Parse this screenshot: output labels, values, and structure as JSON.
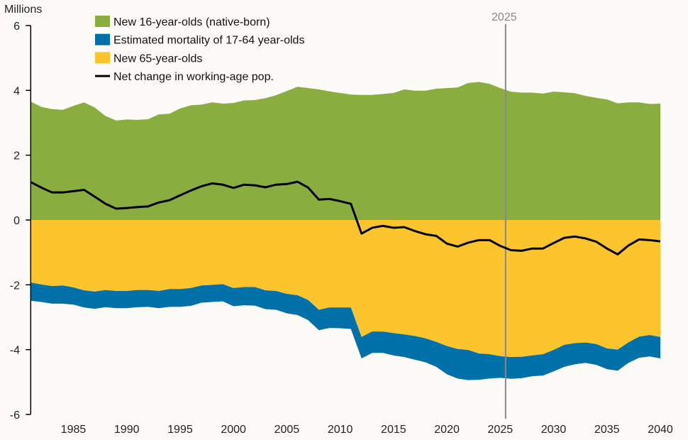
{
  "chart_data": {
    "type": "area",
    "ylabel": "Millions",
    "ylim": [
      -6,
      6
    ],
    "yticks": [
      "6",
      "4",
      "2",
      "0",
      "-2",
      "-4",
      "-6"
    ],
    "xlim": [
      1981,
      2040
    ],
    "xticks": [
      "1985",
      "1990",
      "1995",
      "2000",
      "2005",
      "2010",
      "2015",
      "2020",
      "2025",
      "2030",
      "2035",
      "2040"
    ],
    "grid": false,
    "legend_placement": "top-left",
    "annotation": {
      "label": "2025",
      "x": 2025.5,
      "color": "#888888"
    },
    "x": [
      1981,
      1982,
      1983,
      1984,
      1985,
      1986,
      1987,
      1988,
      1989,
      1990,
      1991,
      1992,
      1993,
      1994,
      1995,
      1996,
      1997,
      1998,
      1999,
      2000,
      2001,
      2002,
      2003,
      2004,
      2005,
      2006,
      2007,
      2008,
      2009,
      2010,
      2011,
      2012,
      2013,
      2014,
      2015,
      2016,
      2017,
      2018,
      2019,
      2020,
      2021,
      2022,
      2023,
      2024,
      2025,
      2026,
      2027,
      2028,
      2029,
      2030,
      2031,
      2032,
      2033,
      2034,
      2035,
      2036,
      2037,
      2038,
      2039,
      2040
    ],
    "series": [
      {
        "name": "New 16-year-olds (native-born)",
        "kind": "area",
        "color": "#8aad3f",
        "values": [
          3.65,
          3.49,
          3.42,
          3.4,
          3.52,
          3.63,
          3.47,
          3.21,
          3.07,
          3.1,
          3.09,
          3.11,
          3.26,
          3.28,
          3.44,
          3.54,
          3.56,
          3.63,
          3.59,
          3.61,
          3.69,
          3.7,
          3.76,
          3.85,
          3.98,
          4.11,
          4.07,
          4.03,
          3.97,
          3.92,
          3.87,
          3.86,
          3.86,
          3.89,
          3.92,
          4.03,
          3.99,
          3.99,
          4.05,
          4.07,
          4.09,
          4.23,
          4.26,
          4.2,
          4.07,
          3.96,
          3.93,
          3.93,
          3.9,
          3.96,
          3.94,
          3.91,
          3.83,
          3.77,
          3.72,
          3.6,
          3.63,
          3.63,
          3.58,
          3.59
        ]
      },
      {
        "name": "Estimated mortality of 17-64 year-olds",
        "kind": "area",
        "color": "#0070a8",
        "values": [
          -0.56,
          -0.54,
          -0.54,
          -0.56,
          -0.53,
          -0.53,
          -0.53,
          -0.53,
          -0.53,
          -0.53,
          -0.53,
          -0.52,
          -0.53,
          -0.55,
          -0.55,
          -0.55,
          -0.53,
          -0.53,
          -0.53,
          -0.56,
          -0.56,
          -0.57,
          -0.58,
          -0.58,
          -0.6,
          -0.61,
          -0.62,
          -0.63,
          -0.63,
          -0.64,
          -0.66,
          -0.66,
          -0.66,
          -0.66,
          -0.69,
          -0.7,
          -0.73,
          -0.74,
          -0.77,
          -0.87,
          -0.91,
          -0.93,
          -0.81,
          -0.75,
          -0.67,
          -0.67,
          -0.66,
          -0.64,
          -0.66,
          -0.66,
          -0.68,
          -0.65,
          -0.63,
          -0.64,
          -0.64,
          -0.65,
          -0.63,
          -0.65,
          -0.66,
          -0.66
        ]
      },
      {
        "name": "New 65-year-olds",
        "kind": "area",
        "color": "#fcc52e",
        "values": [
          -1.93,
          -1.99,
          -2.04,
          -2.02,
          -2.08,
          -2.17,
          -2.21,
          -2.16,
          -2.19,
          -2.19,
          -2.16,
          -2.16,
          -2.19,
          -2.13,
          -2.13,
          -2.1,
          -2.02,
          -2.0,
          -1.98,
          -2.1,
          -2.07,
          -2.07,
          -2.17,
          -2.19,
          -2.28,
          -2.32,
          -2.47,
          -2.77,
          -2.7,
          -2.7,
          -2.7,
          -3.61,
          -3.44,
          -3.44,
          -3.49,
          -3.53,
          -3.58,
          -3.65,
          -3.76,
          -3.89,
          -3.98,
          -4.01,
          -4.12,
          -4.14,
          -4.2,
          -4.23,
          -4.22,
          -4.18,
          -4.14,
          -4.01,
          -3.85,
          -3.8,
          -3.78,
          -3.83,
          -3.96,
          -4.0,
          -3.78,
          -3.6,
          -3.55,
          -3.61
        ]
      },
      {
        "name": "Net change in working-age pop.",
        "kind": "line",
        "color": "#000000",
        "values": [
          1.17,
          1.0,
          0.85,
          0.85,
          0.89,
          0.93,
          0.72,
          0.5,
          0.35,
          0.37,
          0.4,
          0.42,
          0.54,
          0.61,
          0.76,
          0.91,
          1.04,
          1.13,
          1.09,
          0.99,
          1.09,
          1.07,
          1.01,
          1.09,
          1.11,
          1.18,
          1.0,
          0.63,
          0.65,
          0.58,
          0.5,
          -0.42,
          -0.24,
          -0.18,
          -0.24,
          -0.22,
          -0.34,
          -0.44,
          -0.49,
          -0.73,
          -0.82,
          -0.7,
          -0.62,
          -0.62,
          -0.8,
          -0.93,
          -0.95,
          -0.88,
          -0.88,
          -0.71,
          -0.55,
          -0.51,
          -0.57,
          -0.67,
          -0.88,
          -1.06,
          -0.79,
          -0.6,
          -0.62,
          -0.66
        ]
      }
    ]
  }
}
